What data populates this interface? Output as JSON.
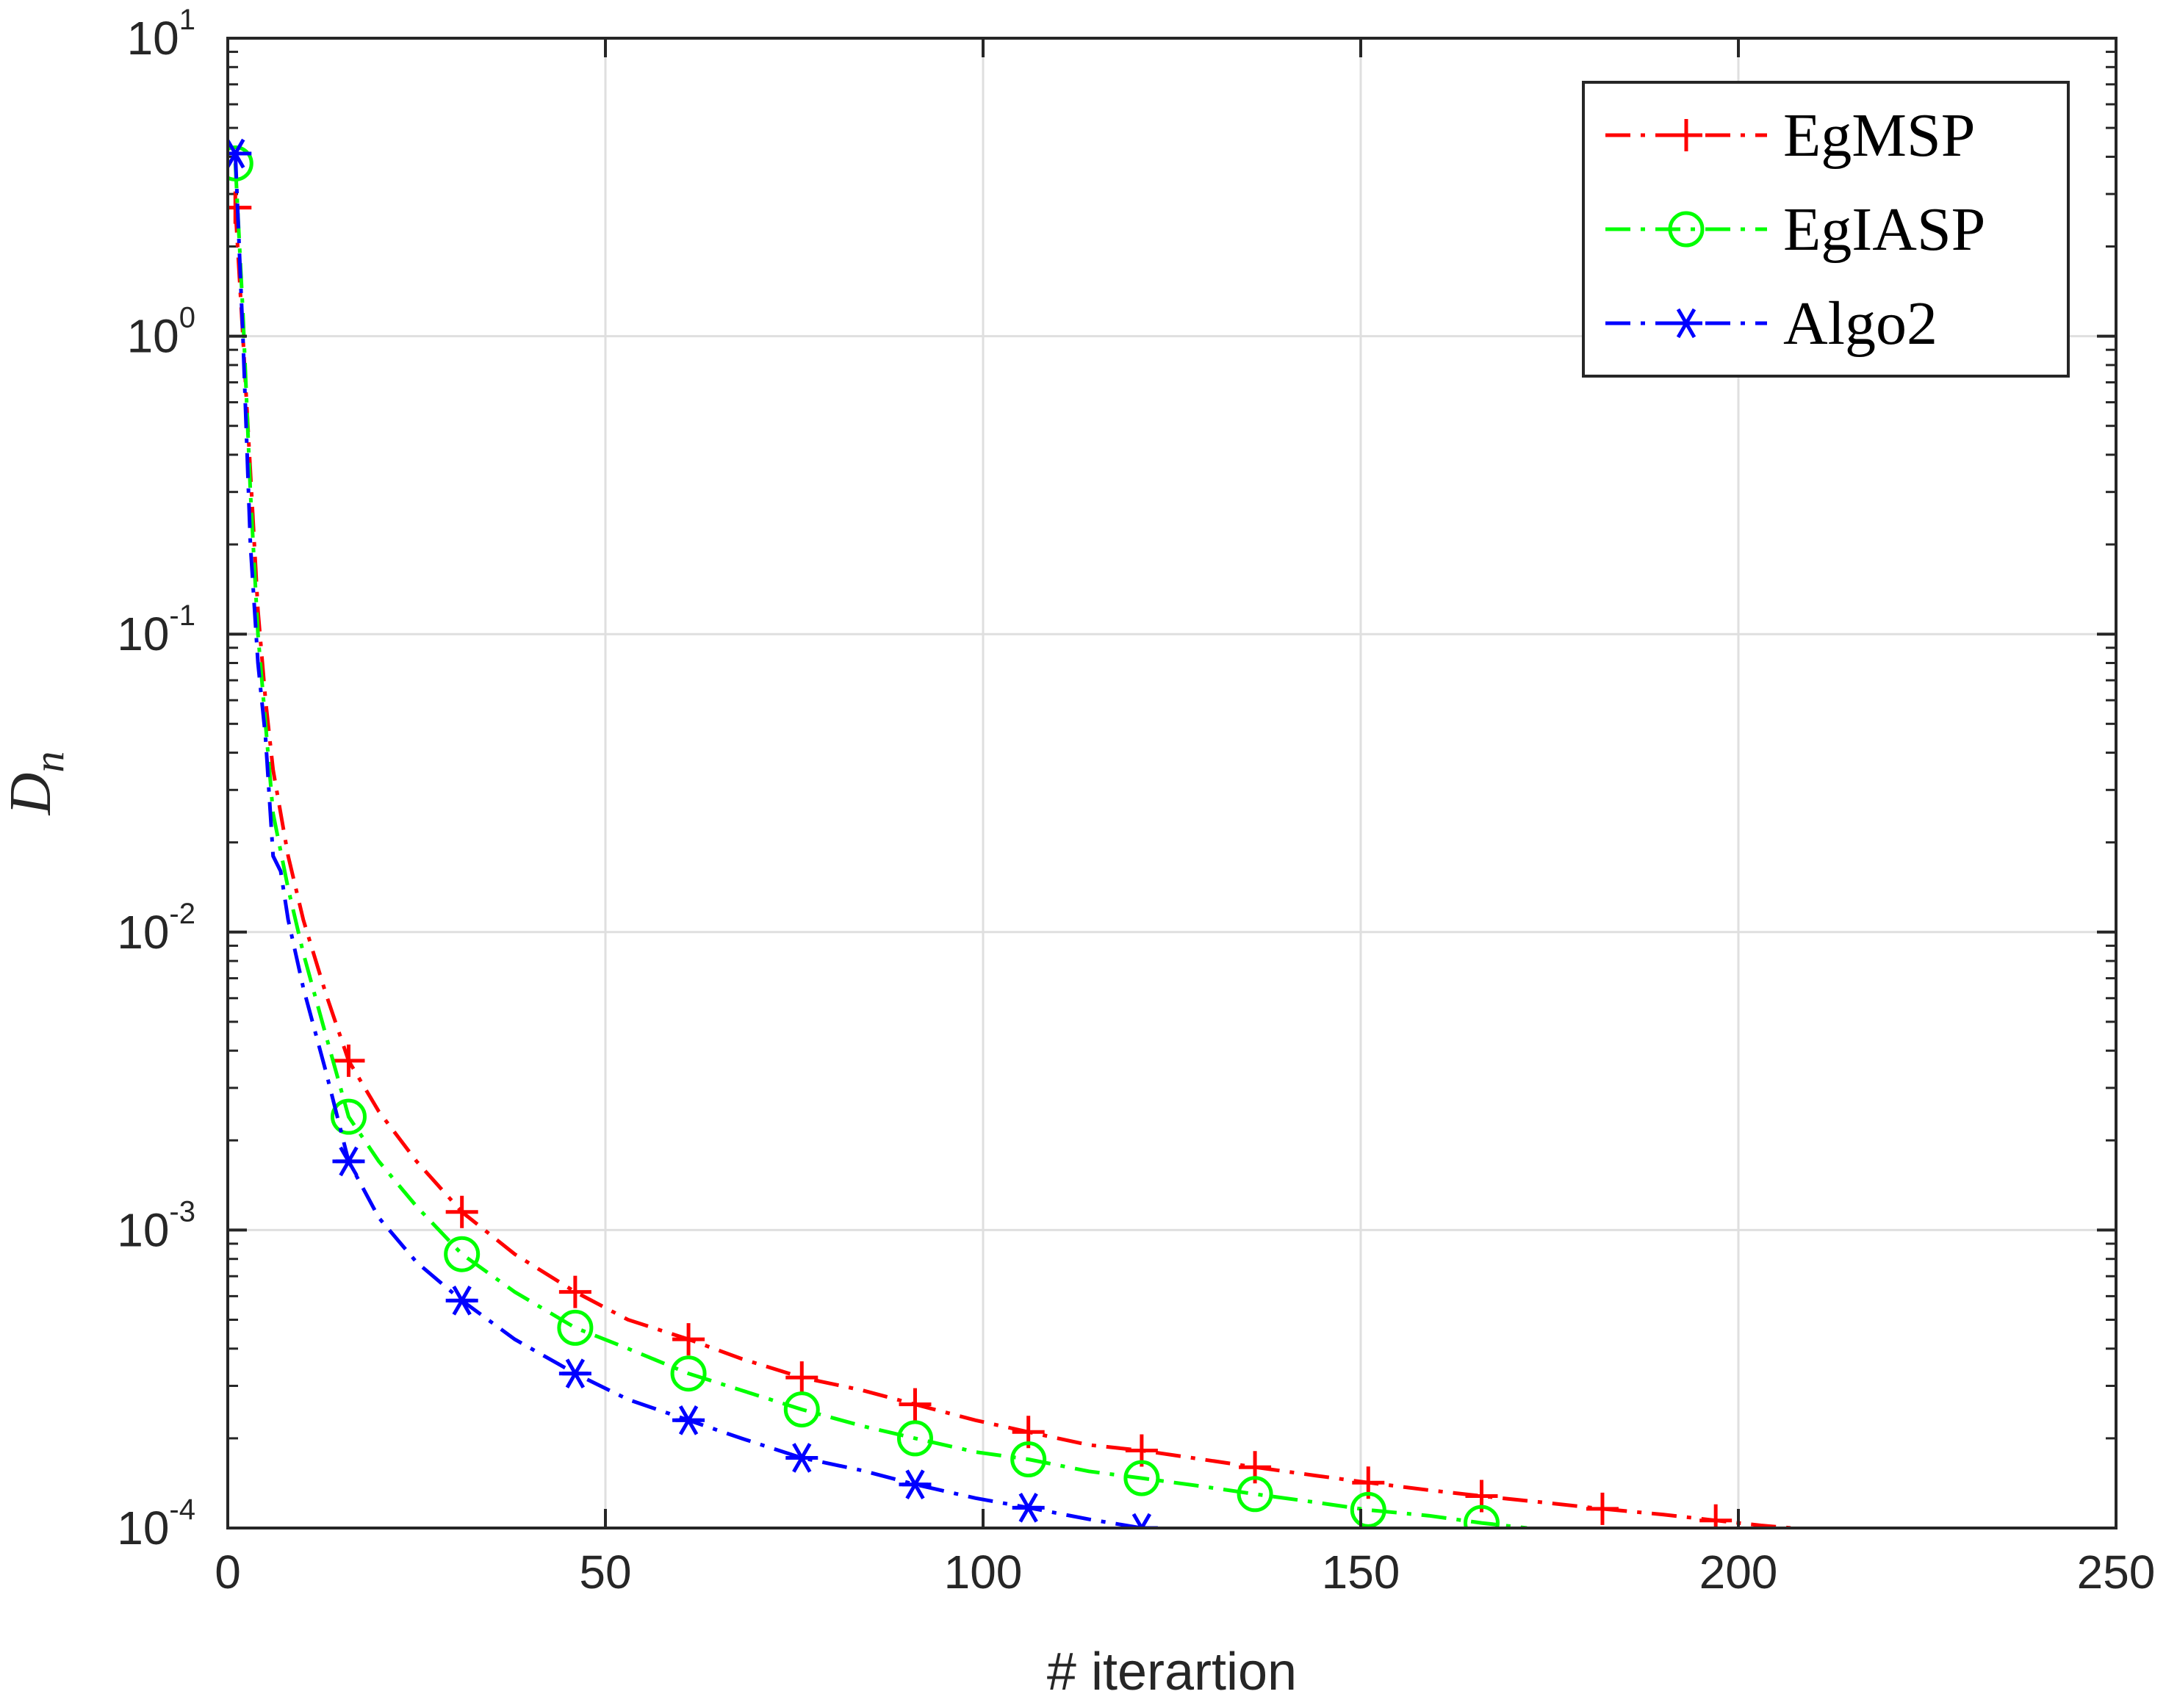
{
  "chart_data": {
    "type": "line",
    "y_scale": "log",
    "xlabel": "# iterartion",
    "ylabel": {
      "base": "D",
      "sub": "n"
    },
    "xlim": [
      0,
      250
    ],
    "ylim": [
      0.0001,
      10
    ],
    "grid": true,
    "legend_position": "top-right",
    "x_ticks": [
      {
        "value": 0,
        "label": "0"
      },
      {
        "value": 50,
        "label": "50"
      },
      {
        "value": 100,
        "label": "100"
      },
      {
        "value": 150,
        "label": "150"
      },
      {
        "value": 200,
        "label": "200"
      },
      {
        "value": 250,
        "label": "250"
      }
    ],
    "y_ticks": [
      {
        "value": 10,
        "base": "10",
        "exp": "1"
      },
      {
        "value": 1,
        "base": "10",
        "exp": "0"
      },
      {
        "value": 0.1,
        "base": "10",
        "exp": "-1"
      },
      {
        "value": 0.01,
        "base": "10",
        "exp": "-2"
      },
      {
        "value": 0.001,
        "base": "10",
        "exp": "-3"
      },
      {
        "value": 0.0001,
        "base": "10",
        "exp": "-4"
      }
    ],
    "series": [
      {
        "name": "EgMSP",
        "color": "#ff0000",
        "marker": "plus",
        "line": [
          [
            1,
            2.7
          ],
          [
            2,
            1.0
          ],
          [
            3,
            0.35
          ],
          [
            4,
            0.12
          ],
          [
            5,
            0.06
          ],
          [
            6,
            0.035
          ],
          [
            8,
            0.018
          ],
          [
            10,
            0.011
          ],
          [
            13,
            0.0062
          ],
          [
            16,
            0.0037
          ],
          [
            20,
            0.0025
          ],
          [
            25,
            0.0017
          ],
          [
            31,
            0.00115
          ],
          [
            38,
            0.00083
          ],
          [
            46,
            0.00062
          ],
          [
            53,
            0.0005
          ],
          [
            61,
            0.00043
          ],
          [
            68,
            0.00037
          ],
          [
            76,
            0.00032
          ],
          [
            84,
            0.00029
          ],
          [
            91,
            0.00026
          ],
          [
            99,
            0.00023
          ],
          [
            106,
            0.00021
          ],
          [
            114,
            0.00019
          ],
          [
            121,
            0.000182
          ],
          [
            129,
            0.00017
          ],
          [
            136,
            0.00016
          ],
          [
            144,
            0.00015
          ],
          [
            151,
            0.000142
          ],
          [
            159,
            0.000134
          ],
          [
            166,
            0.000128
          ],
          [
            174,
            0.000122
          ],
          [
            182,
            0.000116
          ],
          [
            190,
            0.000111
          ],
          [
            197,
            0.000106
          ],
          [
            203,
            0.000102
          ],
          [
            207,
            0.0001
          ]
        ],
        "markers": [
          [
            1,
            2.7
          ],
          [
            16,
            0.0037
          ],
          [
            31,
            0.00115
          ],
          [
            46,
            0.00062
          ],
          [
            61,
            0.00043
          ],
          [
            76,
            0.00032
          ],
          [
            91,
            0.00026
          ],
          [
            106,
            0.00021
          ],
          [
            121,
            0.000182
          ],
          [
            136,
            0.00016
          ],
          [
            151,
            0.000142
          ],
          [
            166,
            0.000128
          ],
          [
            182,
            0.000116
          ],
          [
            197,
            0.000106
          ]
        ]
      },
      {
        "name": "EgIASP",
        "color": "#00ff00",
        "marker": "circle",
        "line": [
          [
            1,
            3.8
          ],
          [
            2,
            1.2
          ],
          [
            3,
            0.3
          ],
          [
            4,
            0.1
          ],
          [
            5,
            0.05
          ],
          [
            6,
            0.025
          ],
          [
            8,
            0.014
          ],
          [
            10,
            0.0085
          ],
          [
            13,
            0.0045
          ],
          [
            16,
            0.0024
          ],
          [
            20,
            0.0017
          ],
          [
            25,
            0.0012
          ],
          [
            31,
            0.00083
          ],
          [
            38,
            0.00062
          ],
          [
            46,
            0.00047
          ],
          [
            53,
            0.0004
          ],
          [
            61,
            0.00033
          ],
          [
            68,
            0.00029
          ],
          [
            76,
            0.00025
          ],
          [
            84,
            0.00022
          ],
          [
            91,
            0.0002
          ],
          [
            99,
            0.00018
          ],
          [
            106,
            0.00017
          ],
          [
            114,
            0.000155
          ],
          [
            121,
            0.000147
          ],
          [
            129,
            0.000138
          ],
          [
            136,
            0.00013
          ],
          [
            144,
            0.000122
          ],
          [
            151,
            0.000115
          ],
          [
            159,
            0.00011
          ],
          [
            166,
            0.000104
          ],
          [
            172,
            0.0001
          ]
        ],
        "markers": [
          [
            1,
            3.8
          ],
          [
            16,
            0.0024
          ],
          [
            31,
            0.00083
          ],
          [
            46,
            0.00047
          ],
          [
            61,
            0.00033
          ],
          [
            76,
            0.00025
          ],
          [
            91,
            0.0002
          ],
          [
            106,
            0.00017
          ],
          [
            121,
            0.000147
          ],
          [
            136,
            0.00013
          ],
          [
            151,
            0.000115
          ],
          [
            166,
            0.000104
          ]
        ]
      },
      {
        "name": "Algo2",
        "color": "#0000ff",
        "marker": "asterisk",
        "line": [
          [
            1,
            4.1
          ],
          [
            2,
            1.0
          ],
          [
            3,
            0.2
          ],
          [
            4,
            0.08
          ],
          [
            5,
            0.045
          ],
          [
            6,
            0.018
          ],
          [
            7,
            0.016
          ],
          [
            8,
            0.011
          ],
          [
            10,
            0.0065
          ],
          [
            13,
            0.0034
          ],
          [
            16,
            0.0017
          ],
          [
            20,
            0.0011
          ],
          [
            25,
            0.00078
          ],
          [
            31,
            0.00058
          ],
          [
            38,
            0.00043
          ],
          [
            46,
            0.00033
          ],
          [
            53,
            0.00027
          ],
          [
            61,
            0.00023
          ],
          [
            68,
            0.0002
          ],
          [
            76,
            0.000172
          ],
          [
            84,
            0.000156
          ],
          [
            91,
            0.00014
          ],
          [
            99,
            0.000126
          ],
          [
            106,
            0.000117
          ],
          [
            114,
            0.000107
          ],
          [
            121,
            0.0001
          ]
        ],
        "markers": [
          [
            1,
            4.1
          ],
          [
            16,
            0.0017
          ],
          [
            31,
            0.00058
          ],
          [
            46,
            0.00033
          ],
          [
            61,
            0.00023
          ],
          [
            76,
            0.000172
          ],
          [
            91,
            0.00014
          ],
          [
            106,
            0.000117
          ],
          [
            121,
            0.0001
          ]
        ]
      }
    ]
  }
}
